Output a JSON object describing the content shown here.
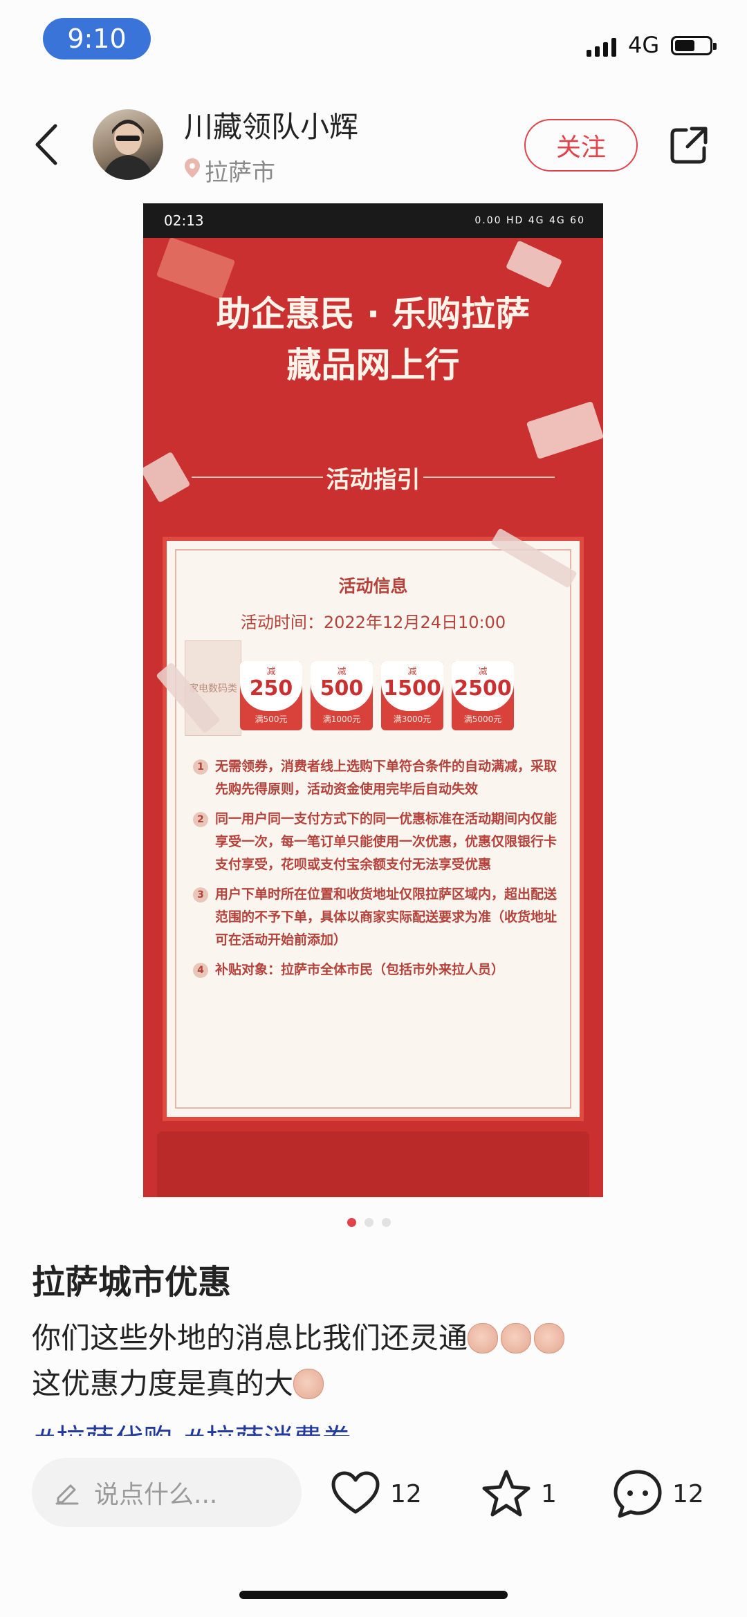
{
  "status_bar": {
    "time": "9:10",
    "network": "4G"
  },
  "header": {
    "username": "川藏领队小辉",
    "location": "拉萨市",
    "follow_label": "关注"
  },
  "poster": {
    "phone_time": "02:13",
    "phone_status": "0.00 HD 4G 4G 60",
    "title_line1": "助企惠民 · 乐购拉萨",
    "title_line2": "藏品网上行",
    "guide": "活动指引",
    "info_title": "活动信息",
    "info_time": "活动时间：2022年12月24日10:00",
    "category": "家电数码类",
    "coupons": [
      {
        "label": "减",
        "amount": "250",
        "sub": "满500元"
      },
      {
        "label": "减",
        "amount": "500",
        "sub": "满1000元"
      },
      {
        "label": "减",
        "amount": "1500",
        "sub": "满3000元"
      },
      {
        "label": "减",
        "amount": "2500",
        "sub": "满5000元"
      }
    ],
    "rules": [
      {
        "n": "1",
        "text": "无需领券，消费者线上选购下单符合条件的自动满减，采取先购先得原则，活动资金使用完毕后自动失效"
      },
      {
        "n": "2",
        "text": "同一用户同一支付方式下的同一优惠标准在活动期间内仅能享受一次，每一笔订单只能使用一次优惠，优惠仅限银行卡支付享受，花呗或支付宝余额支付无法享受优惠"
      },
      {
        "n": "3",
        "text": "用户下单时所在位置和收货地址仅限拉萨区域内，超出配送范围的不予下单，具体以商家实际配送要求为准（收货地址可在活动开始前添加）"
      },
      {
        "n": "4",
        "text": "补贴对象：拉萨市全体市民（包括市外来拉人员）"
      }
    ]
  },
  "post": {
    "title": "拉萨城市优惠",
    "line1": "你们这些外地的消息比我们还灵通",
    "line2": "这优惠力度是真的大",
    "hashtags": "#拉萨代购  #拉萨消费券"
  },
  "bottom_bar": {
    "comment_placeholder": "说点什么...",
    "likes": "12",
    "stars": "1",
    "comments": "12"
  },
  "colors": {
    "accent": "#e0434b",
    "poster_red": "#c9302f",
    "time_pill": "#3a74d8"
  }
}
